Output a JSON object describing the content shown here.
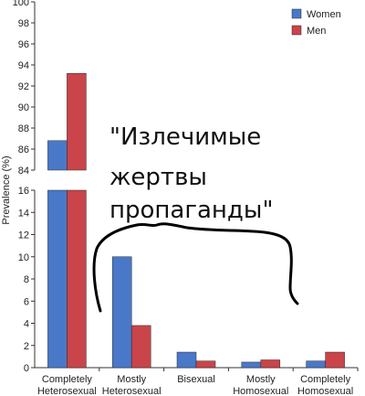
{
  "chart_data": {
    "type": "bar",
    "ylabel": "Prevalence (%)",
    "categories": [
      [
        "Completely",
        "Heterosexual"
      ],
      [
        "Mostly",
        "Heterosexual"
      ],
      [
        "Bisexual",
        ""
      ],
      [
        "Mostly",
        "Homosexual"
      ],
      [
        "Completely",
        "Homosexual"
      ]
    ],
    "series": [
      {
        "name": "Women",
        "color": "#4a78c8",
        "values": [
          86.8,
          10.0,
          1.4,
          0.5,
          0.6
        ]
      },
      {
        "name": "Men",
        "color": "#c9454a",
        "values": [
          93.2,
          3.8,
          0.6,
          0.7,
          1.4
        ]
      }
    ],
    "axis_break": true,
    "lower_ylim": [
      0,
      16
    ],
    "lower_ticks": [
      0,
      2,
      4,
      6,
      8,
      10,
      12,
      14,
      16
    ],
    "upper_ylim": [
      84,
      100
    ],
    "upper_ticks": [
      84,
      86,
      88,
      90,
      92,
      94,
      96,
      98,
      100
    ],
    "legend_position": "top-right",
    "grid": false,
    "annotation": [
      "\"Излечимые",
      "жертвы",
      "пропаганды\""
    ]
  }
}
